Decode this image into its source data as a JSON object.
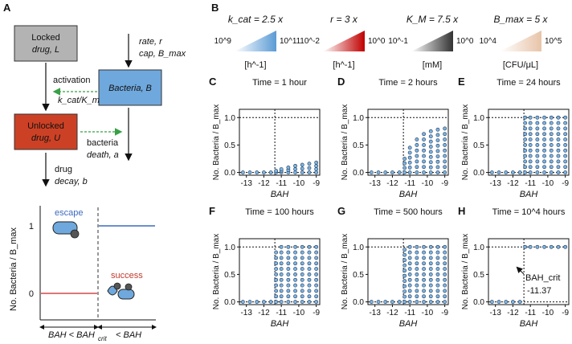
{
  "panel_letters": [
    "A",
    "B",
    "C",
    "D",
    "E",
    "F",
    "G",
    "H"
  ],
  "diagram": {
    "locked_drug": [
      "Locked",
      "drug, L"
    ],
    "bacteria": "Bacteria, B",
    "unlocked_drug": [
      "Unlocked",
      "drug, U"
    ],
    "rate_cap": [
      "rate, r",
      "cap, B_max"
    ],
    "activation": "activation",
    "kcat_km": "k_cat/K_m",
    "bacteria_death": [
      "bacteria",
      "death, a"
    ],
    "drug_decay": [
      "drug",
      "decay, b"
    ],
    "colors": {
      "locked": "#b3b3b3",
      "bacteria": "#6fa8dc",
      "unlocked": "#cc4125",
      "escape_line": "#3c6bbf",
      "success_line": "#d04a4a",
      "arrow_green": "#38a046"
    }
  },
  "schematic_plot": {
    "ylabel": "No. Bacteria / B_max",
    "yticks": [
      "0",
      "1"
    ],
    "escape_label": "escape",
    "success_label": "success",
    "xlabel_left": "BAH < BAH",
    "xlabel_sub": "crit",
    "xlabel_right": "< BAH"
  },
  "colorbars": [
    {
      "label": "k_cat = 2.5 x",
      "min": "10^9",
      "max": "10^11",
      "unit": "[h^-1]",
      "color": "#5b9bd5"
    },
    {
      "label": "r = 3 x",
      "min": "10^-2",
      "max": "10^0",
      "unit": "[h^-1]",
      "color": "#c00000"
    },
    {
      "label": "K_M = 7.5 x",
      "min": "10^-1",
      "max": "10^0",
      "unit": "[mM]",
      "color": "#333333"
    },
    {
      "label": "B_max = 5 x",
      "min": "10^4",
      "max": "10^5",
      "unit": "[CFU/μL]",
      "color": "#e8c4a8"
    }
  ],
  "chart_data": [
    {
      "type": "scatter",
      "panel": "C",
      "title": "Time = 1 hour",
      "xlabel": "BAH",
      "ylabel": "No. Bacteria / B_max",
      "xlim": [
        -13.4,
        -8.8
      ],
      "ylim": [
        -0.05,
        1.15
      ],
      "xticks": [
        "-13",
        "-12",
        "-11",
        "-10",
        "-9"
      ],
      "yticks": [
        "0.0",
        "0.5",
        "1.0"
      ],
      "crit": -11.37,
      "series_envelope": {
        "x": [
          -13.2,
          -12.8,
          -12.4,
          -12.0,
          -11.6,
          -11.3,
          -11.0,
          -10.6,
          -10.2,
          -9.8,
          -9.4,
          -9.0
        ],
        "max": [
          0.0,
          0.0,
          0.0,
          0.0,
          0.0,
          0.03,
          0.06,
          0.09,
          0.12,
          0.14,
          0.16,
          0.18
        ]
      }
    },
    {
      "type": "scatter",
      "panel": "D",
      "title": "Time = 2 hours",
      "xlabel": "BAH",
      "ylabel": "No. Bacteria / B_max",
      "xlim": [
        -13.4,
        -8.8
      ],
      "ylim": [
        -0.05,
        1.15
      ],
      "xticks": [
        "-13",
        "-12",
        "-11",
        "-10",
        "-9"
      ],
      "yticks": [
        "0.0",
        "0.5",
        "1.0"
      ],
      "crit": -11.37,
      "series_envelope": {
        "x": [
          -13.2,
          -12.8,
          -12.4,
          -12.0,
          -11.6,
          -11.3,
          -11.0,
          -10.6,
          -10.2,
          -9.8,
          -9.4,
          -9.0
        ],
        "max": [
          0.0,
          0.0,
          0.0,
          0.0,
          0.0,
          0.25,
          0.45,
          0.6,
          0.7,
          0.75,
          0.78,
          0.8
        ]
      }
    },
    {
      "type": "scatter",
      "panel": "E",
      "title": "Time = 24 hours",
      "xlabel": "BAH",
      "ylabel": "No. Bacteria / B_max",
      "xlim": [
        -13.4,
        -8.8
      ],
      "ylim": [
        -0.05,
        1.15
      ],
      "xticks": [
        "-13",
        "-12",
        "-11",
        "-10",
        "-9"
      ],
      "yticks": [
        "0.0",
        "0.5",
        "1.0"
      ],
      "crit": -11.37,
      "series_envelope": {
        "x": [
          -13.2,
          -12.8,
          -12.4,
          -12.0,
          -11.6,
          -11.3,
          -11.0,
          -10.6,
          -10.2,
          -9.8,
          -9.4,
          -9.0
        ],
        "max": [
          0.0,
          0.0,
          0.0,
          0.0,
          0.0,
          1.0,
          1.0,
          1.0,
          1.0,
          1.0,
          1.0,
          1.0
        ]
      }
    },
    {
      "type": "scatter",
      "panel": "F",
      "title": "Time = 100 hours",
      "xlabel": "BAH",
      "ylabel": "No. Bacteria / B_max",
      "xlim": [
        -13.4,
        -8.8
      ],
      "ylim": [
        -0.05,
        1.15
      ],
      "xticks": [
        "-13",
        "-12",
        "-11",
        "-10",
        "-9"
      ],
      "yticks": [
        "0.0",
        "0.5",
        "1.0"
      ],
      "crit": -11.37,
      "series_envelope": {
        "x": [
          -13.2,
          -12.8,
          -12.4,
          -12.0,
          -11.6,
          -11.3,
          -11.0,
          -10.6,
          -10.2,
          -9.8,
          -9.4,
          -9.0
        ],
        "max": [
          0.0,
          0.0,
          0.0,
          0.0,
          0.0,
          0.9,
          1.0,
          1.0,
          1.0,
          1.0,
          1.0,
          1.0
        ]
      }
    },
    {
      "type": "scatter",
      "panel": "G",
      "title": "Time = 500 hours",
      "xlabel": "BAH",
      "ylabel": "No. Bacteria / B_max",
      "xlim": [
        -13.4,
        -8.8
      ],
      "ylim": [
        -0.05,
        1.15
      ],
      "xticks": [
        "-13",
        "-12",
        "-11",
        "-10",
        "-9"
      ],
      "yticks": [
        "0.0",
        "0.5",
        "1.0"
      ],
      "crit": -11.37,
      "series_envelope": {
        "x": [
          -13.2,
          -12.8,
          -12.4,
          -12.0,
          -11.6,
          -11.3,
          -11.0,
          -10.6,
          -10.2,
          -9.8,
          -9.4,
          -9.0
        ],
        "max": [
          0.0,
          0.0,
          0.0,
          0.0,
          0.0,
          0.95,
          1.0,
          1.0,
          1.0,
          1.0,
          1.0,
          1.0
        ]
      }
    },
    {
      "type": "scatter",
      "panel": "H",
      "title": "Time = 10^4 hours",
      "xlabel": "BAH",
      "ylabel": "No. Bacteria / B_max",
      "xlim": [
        -13.4,
        -8.8
      ],
      "ylim": [
        -0.05,
        1.15
      ],
      "xticks": [
        "-13",
        "-12",
        "-11",
        "-10",
        "-9"
      ],
      "yticks": [
        "0.0",
        "0.5",
        "1.0"
      ],
      "crit": -11.37,
      "annotation": [
        "BAH_crit",
        "-11.37"
      ],
      "series_envelope": {
        "x": [
          -13.2,
          -12.8,
          -12.4,
          -12.0,
          -11.6,
          -11.3,
          -11.0,
          -10.6,
          -10.2,
          -9.8,
          -9.4,
          -9.0
        ],
        "max": [
          0.0,
          0.0,
          0.0,
          0.0,
          0.0,
          1.0,
          1.0,
          1.0,
          1.0,
          1.0,
          1.0,
          1.0
        ]
      }
    }
  ]
}
